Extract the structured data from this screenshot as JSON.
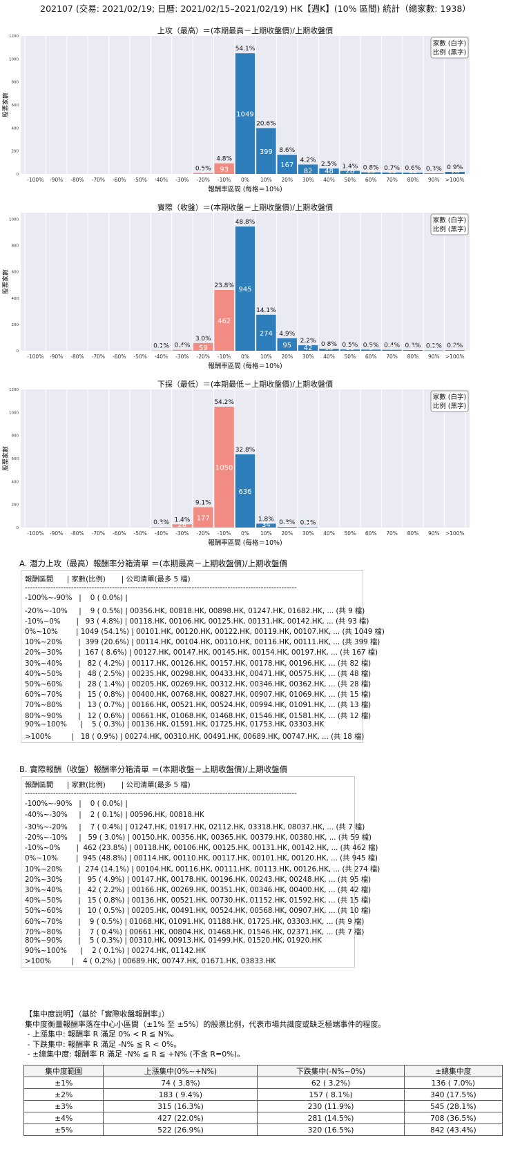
{
  "main_title": "202107 (交易: 2021/02/19; 日曆: 2021/02/15–2021/02/19) HK【週K】(10% 區間) 統計（總家數: 1938）",
  "chart_data": [
    {
      "type": "bar",
      "title": "上攻（最高）＝(本期最高－上期收盤價)/上期收盤價",
      "xlabel": "報酬率區間 (每格＝10%)",
      "ylabel": "股票家數",
      "legend": "家數 (白字)\n比例 (黑字)",
      "ylim": [
        0,
        1200
      ],
      "yticks": [
        0,
        200,
        400,
        600,
        800,
        1000,
        1200
      ],
      "grid": true,
      "xticks": [
        "-100%",
        "-90%",
        "-80%",
        "-70%",
        "-60%",
        "-50%",
        "-40%",
        "-30%",
        "-20%",
        "-10%",
        "0%",
        "10%",
        "20%",
        "30%",
        "40%",
        "50%",
        "60%",
        "70%",
        "80%",
        "90%",
        ">100%"
      ],
      "bars": [
        {
          "bin": -2,
          "value": 9,
          "pct": "0.5%",
          "color": "#f28b82"
        },
        {
          "bin": -1,
          "value": 93,
          "pct": "4.8%",
          "color": "#f28b82"
        },
        {
          "bin": 0,
          "value": 1049,
          "pct": "54.1%",
          "color": "#2f7ebc"
        },
        {
          "bin": 1,
          "value": 399,
          "pct": "20.6%",
          "color": "#2f7ebc"
        },
        {
          "bin": 2,
          "value": 167,
          "pct": "8.6%",
          "color": "#2f7ebc"
        },
        {
          "bin": 3,
          "value": 82,
          "pct": "4.2%",
          "color": "#2f7ebc"
        },
        {
          "bin": 4,
          "value": 48,
          "pct": "2.5%",
          "color": "#2f7ebc"
        },
        {
          "bin": 5,
          "value": 28,
          "pct": "1.4%",
          "color": "#2f7ebc"
        },
        {
          "bin": 6,
          "value": 15,
          "pct": "0.8%",
          "color": "#2f7ebc"
        },
        {
          "bin": 7,
          "value": 13,
          "pct": "0.7%",
          "color": "#2f7ebc"
        },
        {
          "bin": 8,
          "value": 12,
          "pct": "0.6%",
          "color": "#2f7ebc"
        },
        {
          "bin": 9,
          "value": 5,
          "pct": "0.3%",
          "color": "#2f7ebc"
        },
        {
          "bin": 10,
          "value": 18,
          "pct": "0.9%",
          "color": "#2f7ebc"
        }
      ]
    },
    {
      "type": "bar",
      "title": "實際（收盤）＝(本期收盤－上期收盤價)/上期收盤價",
      "xlabel": "報酬率區間 (每格＝10%)",
      "ylabel": "股票家數",
      "legend": "家數 (白字)\n比例 (黑字)",
      "ylim": [
        0,
        1050
      ],
      "yticks": [
        0,
        200,
        400,
        600,
        800,
        1000
      ],
      "grid": true,
      "xticks": [
        "-100%",
        "-90%",
        "-80%",
        "-70%",
        "-60%",
        "-50%",
        "-40%",
        "-30%",
        "-20%",
        "-10%",
        "0%",
        "10%",
        "20%",
        "30%",
        "40%",
        "50%",
        "60%",
        "70%",
        "80%",
        "90%",
        ">100%"
      ],
      "bars": [
        {
          "bin": -4,
          "value": 2,
          "pct": "0.1%",
          "color": "#f28b82"
        },
        {
          "bin": -3,
          "value": 7,
          "pct": "0.4%",
          "color": "#f28b82"
        },
        {
          "bin": -2,
          "value": 59,
          "pct": "3.0%",
          "color": "#f28b82"
        },
        {
          "bin": -1,
          "value": 462,
          "pct": "23.8%",
          "color": "#f28b82"
        },
        {
          "bin": 0,
          "value": 945,
          "pct": "48.8%",
          "color": "#2f7ebc"
        },
        {
          "bin": 1,
          "value": 274,
          "pct": "14.1%",
          "color": "#2f7ebc"
        },
        {
          "bin": 2,
          "value": 95,
          "pct": "4.9%",
          "color": "#2f7ebc"
        },
        {
          "bin": 3,
          "value": 42,
          "pct": "2.2%",
          "color": "#2f7ebc"
        },
        {
          "bin": 4,
          "value": 15,
          "pct": "0.8%",
          "color": "#2f7ebc"
        },
        {
          "bin": 5,
          "value": 10,
          "pct": "0.5%",
          "color": "#2f7ebc"
        },
        {
          "bin": 6,
          "value": 9,
          "pct": "0.5%",
          "color": "#2f7ebc"
        },
        {
          "bin": 7,
          "value": 7,
          "pct": "0.4%",
          "color": "#2f7ebc"
        },
        {
          "bin": 8,
          "value": 5,
          "pct": "0.3%",
          "color": "#2f7ebc"
        },
        {
          "bin": 9,
          "value": 2,
          "pct": "0.1%",
          "color": "#2f7ebc"
        },
        {
          "bin": 10,
          "value": 4,
          "pct": "0.2%",
          "color": "#2f7ebc"
        }
      ]
    },
    {
      "type": "bar",
      "title": "下探（最低）＝(本期最低－上期收盤價)/上期收盤價",
      "xlabel": "報酬率區間 (每格＝10%)",
      "ylabel": "股票家數",
      "legend": "家數 (白字)\n比例 (黑字)",
      "ylim": [
        0,
        1200
      ],
      "yticks": [
        0,
        200,
        400,
        600,
        800,
        1000,
        1200
      ],
      "grid": true,
      "xticks": [
        "-100%",
        "-90%",
        "-80%",
        "-70%",
        "-60%",
        "-50%",
        "-40%",
        "-30%",
        "-20%",
        "-10%",
        "0%",
        "10%",
        "20%",
        "30%",
        "40%",
        "50%",
        "60%",
        "70%",
        "80%",
        "90%",
        ">100%"
      ],
      "bars": [
        {
          "bin": -4,
          "value": 5,
          "pct": "0.3%",
          "color": "#f28b82"
        },
        {
          "bin": -3,
          "value": 28,
          "pct": "1.4%",
          "color": "#f28b82"
        },
        {
          "bin": -2,
          "value": 177,
          "pct": "9.1%",
          "color": "#f28b82"
        },
        {
          "bin": -1,
          "value": 1050,
          "pct": "54.2%",
          "color": "#f28b82"
        },
        {
          "bin": 0,
          "value": 636,
          "pct": "32.8%",
          "color": "#2f7ebc"
        },
        {
          "bin": 1,
          "value": 34,
          "pct": "1.8%",
          "color": "#2f7ebc"
        },
        {
          "bin": 2,
          "value": 6,
          "pct": "0.3%",
          "color": "#2f7ebc"
        },
        {
          "bin": 3,
          "value": 2,
          "pct": "0.1%",
          "color": "#2f7ebc"
        }
      ]
    }
  ],
  "list_a": {
    "title": "A. 潛力上攻（最高）報酬率分箱清單 ＝(本期最高－上期收盤價)/上期收盤價",
    "lines": [
      "報酬區間      | 家數(比例)       | 公司清單(最多 5 檔)",
      "----------------------------------------------------------------------------------------------------------",
      "-100%~-90%   |    0 ( 0.0%) |",
      "-20%~-10%     |    9 ( 0.5%) | 00356.HK, 00818.HK, 00898.HK, 01247.HK, 01682.HK, ... (共 9 檔)",
      "-10%~0%       |   93 ( 4.8%) | 00118.HK, 00106.HK, 00125.HK, 00131.HK, 00142.HK, ... (共 93 檔)",
      "0%~10%        | 1049 (54.1%) | 00101.HK, 00120.HK, 00122.HK, 00119.HK, 00107.HK, ... (共 1049 檔)",
      "10%~20%       |  399 (20.6%) | 00114.HK, 00104.HK, 00110.HK, 00116.HK, 00111.HK, ... (共 399 檔)",
      "20%~30%       |  167 ( 8.6%) | 00127.HK, 00147.HK, 00145.HK, 00154.HK, 00197.HK, ... (共 167 檔)",
      "30%~40%       |   82 ( 4.2%) | 00117.HK, 00126.HK, 00157.HK, 00178.HK, 00196.HK, ... (共 82 檔)",
      "40%~50%       |   48 ( 2.5%) | 00235.HK, 00298.HK, 00433.HK, 00471.HK, 00575.HK, ... (共 48 檔)",
      "50%~60%       |   28 ( 1.4%) | 00205.HK, 00269.HK, 00312.HK, 00346.HK, 00362.HK, ... (共 28 檔)",
      "60%~70%       |   15 ( 0.8%) | 00400.HK, 00768.HK, 00827.HK, 00907.HK, 01069.HK, ... (共 15 檔)",
      "70%~80%       |   13 ( 0.7%) | 00166.HK, 00521.HK, 00524.HK, 00994.HK, 01091.HK, ... (共 13 檔)",
      "80%~90%       |   12 ( 0.6%) | 00661.HK, 01068.HK, 01468.HK, 01546.HK, 01581.HK, ... (共 12 檔)",
      "90%~100%      |    5 ( 0.3%) | 00136.HK, 01591.HK, 01725.HK, 01753.HK, 03303.HK",
      ">100%         |   18 ( 0.9%) | 00274.HK, 00310.HK, 00491.HK, 00689.HK, 00747.HK, ... (共 18 檔)"
    ]
  },
  "list_b": {
    "title": "B. 實際報酬（收盤）報酬率分箱清單 ＝(本期收盤－上期收盤價)/上期收盤價",
    "lines": [
      "報酬區間      | 家數(比例)       | 公司清單(最多 5 檔)",
      "----------------------------------------------------------------------------------------------------------",
      "-100%~-90%   |    0 ( 0.0%) |",
      "-40%~-30%     |    2 ( 0.1%) | 00596.HK, 00818.HK",
      "-30%~-20%     |    7 ( 0.4%) | 01247.HK, 01917.HK, 02112.HK, 03318.HK, 08037.HK, ... (共 7 檔)",
      "-20%~-10%     |   59 ( 3.0%) | 00150.HK, 00356.HK, 00365.HK, 00379.HK, 00380.HK, ... (共 59 檔)",
      "-10%~0%       |  462 (23.8%) | 00118.HK, 00106.HK, 00125.HK, 00131.HK, 00142.HK, ... (共 462 檔)",
      "0%~10%        |  945 (48.8%) | 00114.HK, 00110.HK, 00117.HK, 00101.HK, 00120.HK, ... (共 945 檔)",
      "10%~20%       |  274 (14.1%) | 00104.HK, 00116.HK, 00111.HK, 00113.HK, 00126.HK, ... (共 274 檔)",
      "20%~30%       |   95 ( 4.9%) | 00147.HK, 00178.HK, 00196.HK, 00243.HK, 00248.HK, ... (共 95 檔)",
      "30%~40%       |   42 ( 2.2%) | 00166.HK, 00269.HK, 00351.HK, 00346.HK, 00400.HK, ... (共 42 檔)",
      "40%~50%       |   15 ( 0.8%) | 00136.HK, 00521.HK, 00730.HK, 01152.HK, 01592.HK, ... (共 15 檔)",
      "50%~60%       |   10 ( 0.5%) | 00205.HK, 00491.HK, 00524.HK, 00568.HK, 00907.HK, ... (共 10 檔)",
      "60%~70%       |    9 ( 0.5%) | 01068.HK, 01091.HK, 01188.HK, 01725.HK, 03303.HK, ... (共 9 檔)",
      "70%~80%       |    7 ( 0.4%) | 00661.HK, 00804.HK, 01468.HK, 01546.HK, 02371.HK, ... (共 7 檔)",
      "80%~90%       |    5 ( 0.3%) | 00310.HK, 00913.HK, 01499.HK, 01520.HK, 01920.HK",
      "90%~100%      |    2 ( 0.1%) | 00274.HK, 01142.HK",
      ">100%         |    4 ( 0.2%) | 00689.HK, 00747.HK, 01671.HK, 03833.HK"
    ]
  },
  "notes": {
    "lines": [
      "【集中度說明】（基於「實際收盤報酬率」）",
      "集中度衡量報酬率落在中心小區間（±1% 至 ±5%）的股票比例，代表市場共識度或缺乏極端事件的程度。",
      " - 上漲集中: 報酬率 R 滿足 0% < R ≦ N%。",
      " - 下跌集中: 報酬率 R 滿足 -N% ≦ R < 0%。",
      " - ±總集中度: 報酬率 R 滿足 -N% ≦ R ≦ +N% (不含 R=0%)。"
    ]
  },
  "concentration": {
    "headers": [
      "集中度範圍",
      "上漲集中(0%~+N%)",
      "下跌集中(-N%~0%)",
      "±總集中度"
    ],
    "rows": [
      [
        "±1%",
        "74 ( 3.8%)",
        "62 ( 3.2%)",
        "136 ( 7.0%)"
      ],
      [
        "±2%",
        "183 ( 9.4%)",
        "157 ( 8.1%)",
        "340 (17.5%)"
      ],
      [
        "±3%",
        "315 (16.3%)",
        "230 (11.9%)",
        "545 (28.1%)"
      ],
      [
        "±4%",
        "427 (22.0%)",
        "281 (14.5%)",
        "708 (36.5%)"
      ],
      [
        "±5%",
        "522 (26.9%)",
        "320 (16.5%)",
        "842 (43.4%)"
      ]
    ]
  }
}
